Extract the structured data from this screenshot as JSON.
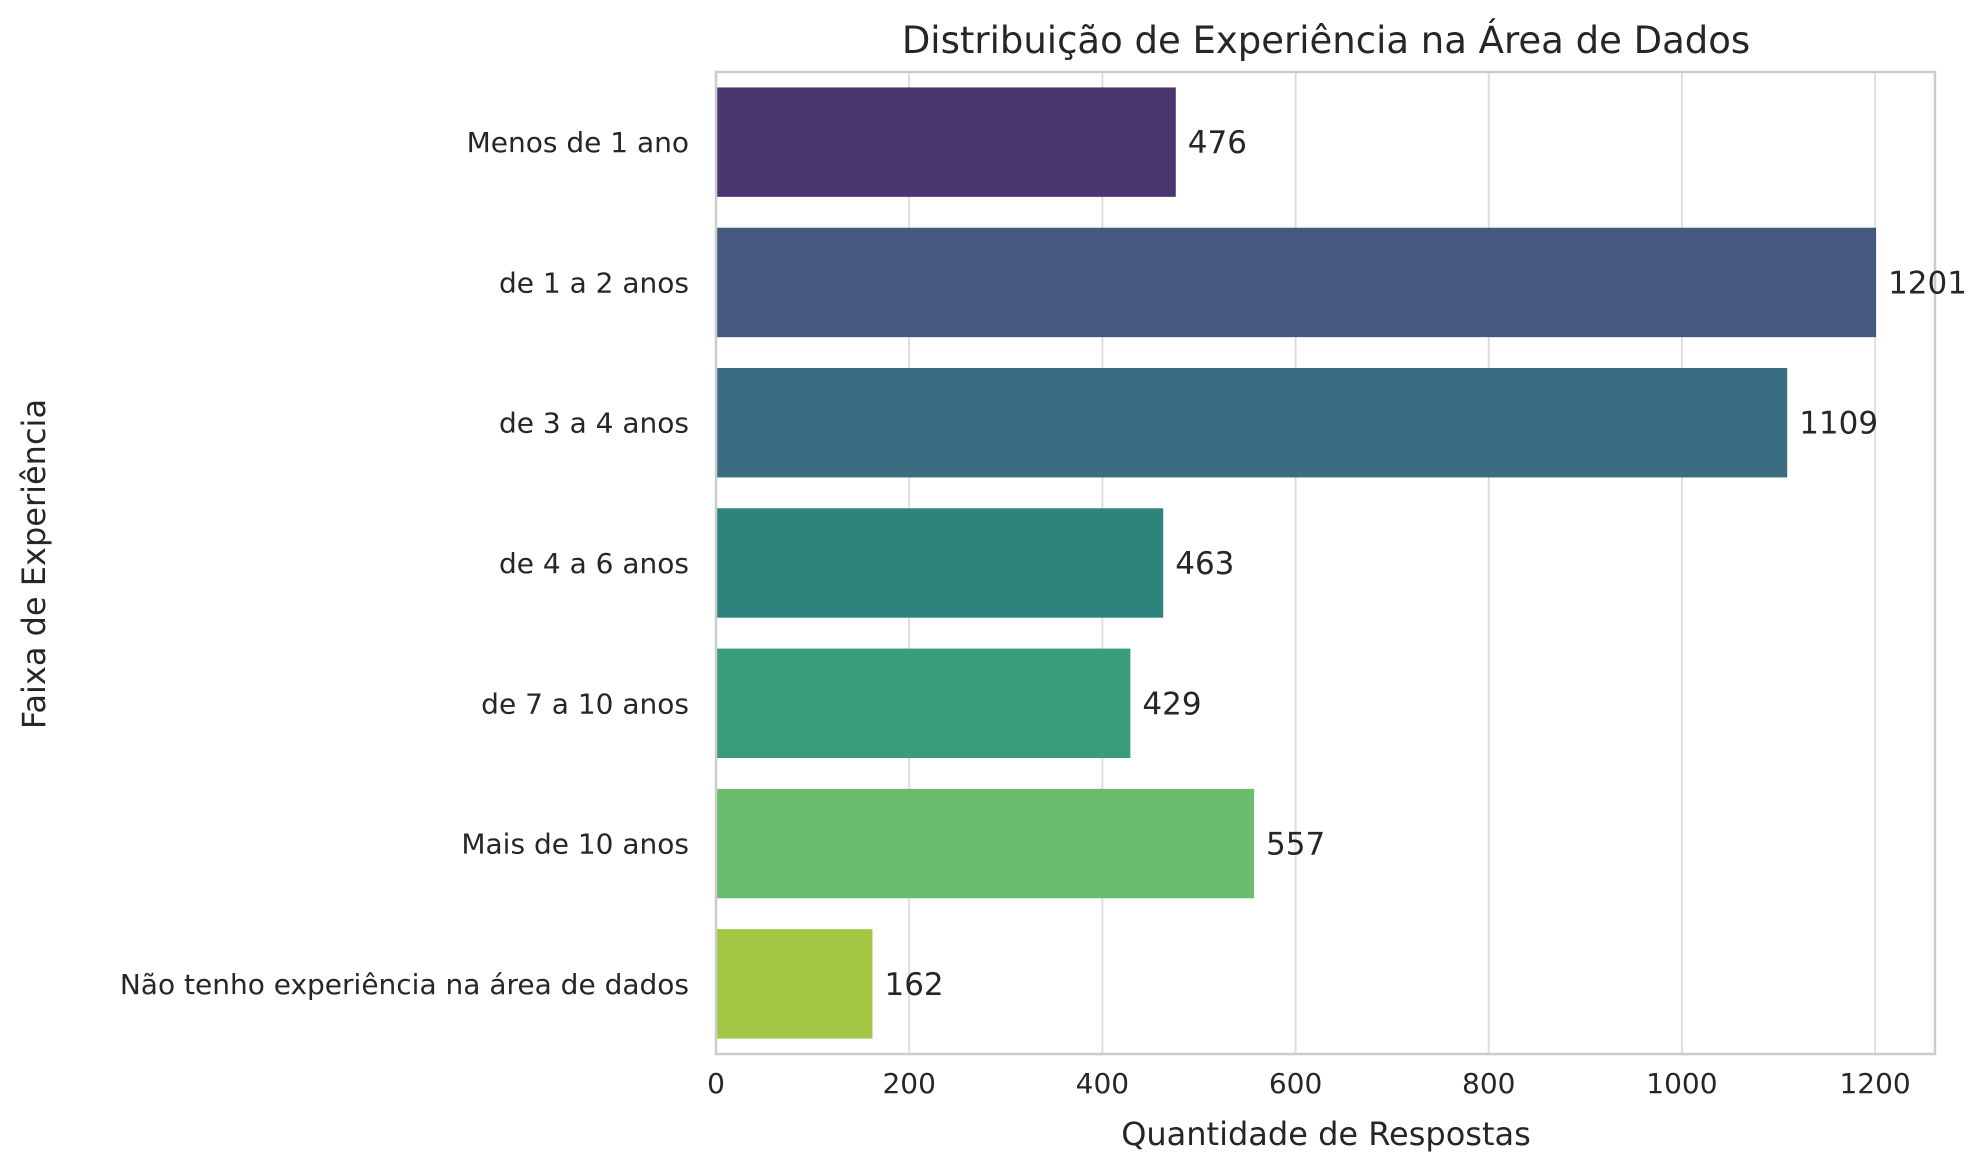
{
  "chart_data": {
    "type": "bar",
    "orientation": "horizontal",
    "title": "Distribuição de Experiência na Área de Dados",
    "xlabel": "Quantidade de Respostas",
    "ylabel": "Faixa de Experiência",
    "xlim": [
      0,
      1262
    ],
    "xticks": [
      0,
      200,
      400,
      600,
      800,
      1000,
      1200
    ],
    "grid": true,
    "categories": [
      "Menos de 1 ano",
      "de 1 a 2 anos",
      "de 3 a 4 anos",
      "de 4 a 6 anos",
      "de 7 a 10 anos",
      "Mais de 10 anos",
      "Não tenho experiência na área de dados"
    ],
    "values": [
      476,
      1201,
      1109,
      463,
      429,
      557,
      162
    ],
    "data_labels": [
      "476",
      "1201",
      "1109",
      "463",
      "429",
      "557",
      "162"
    ],
    "colors": [
      "#4a3671",
      "#45587e",
      "#3a6d82",
      "#2e847d",
      "#3a9d7a",
      "#6bbd6d",
      "#a3c745"
    ]
  }
}
